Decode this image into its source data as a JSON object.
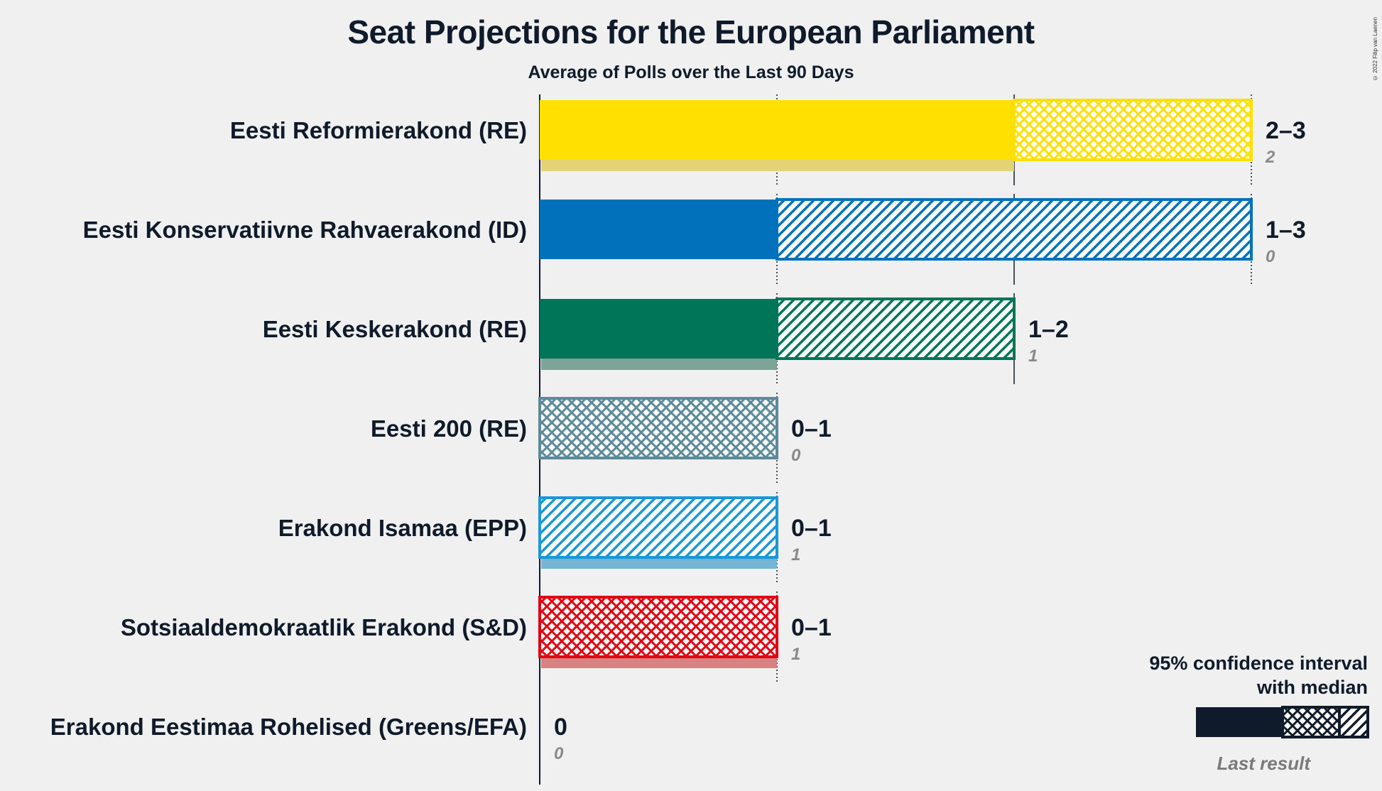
{
  "title": "Seat Projections for the European Parliament",
  "subtitle": "Average of Polls over the Last 90 Days",
  "copyright": "© 2022 Filip van Laenen",
  "legend": {
    "line1": "95% confidence interval",
    "line2": "with median",
    "last_result": "Last result",
    "color": "#0f1a2a"
  },
  "chart_data": {
    "type": "bar",
    "orientation": "horizontal",
    "x_axis": {
      "min": 0,
      "max": 3,
      "gridlines": [
        1,
        2,
        3
      ]
    },
    "parties": [
      {
        "name": "Eesti Reformierakond (RE)",
        "color": "#FFE000",
        "lastColor": "#e2d476",
        "ci80_low": 0,
        "ci80_high": 2,
        "ci95_high": 3,
        "ci95_pattern": "cross",
        "range": "2–3",
        "last": 2,
        "last_label": "2"
      },
      {
        "name": "Eesti Konservatiivne Rahvaerakond (ID)",
        "color": "#0071BA",
        "lastColor": "#8db5d3",
        "ci80_low": 0,
        "ci80_high": 1,
        "ci95_high": 3,
        "ci95_pattern": "diag",
        "range": "1–3",
        "last": 0,
        "last_label": "0"
      },
      {
        "name": "Eesti Keskerakond (RE)",
        "color": "#007557",
        "lastColor": "#7ea397",
        "ci80_low": 0,
        "ci80_high": 1,
        "ci95_high": 2,
        "ci95_pattern": "diag",
        "range": "1–2",
        "last": 1,
        "last_label": "1"
      },
      {
        "name": "Eesti 200 (RE)",
        "color": "#5b8a9b",
        "lastColor": "#a9c0c8",
        "ci80_low": 0,
        "ci80_high": 0,
        "ci95_high": 1,
        "ci95_pattern": "cross",
        "range": "0–1",
        "last": 0,
        "last_label": "0"
      },
      {
        "name": "Erakond Isamaa (EPP)",
        "color": "#1b97d8",
        "lastColor": "#74b5d6",
        "ci80_low": 0,
        "ci80_high": 0,
        "ci95_high": 1,
        "ci95_pattern": "diag",
        "range": "0–1",
        "last": 1,
        "last_label": "1"
      },
      {
        "name": "Sotsiaaldemokraatlik Erakond (S&D)",
        "color": "#E10514",
        "lastColor": "#d98283",
        "ci80_low": 0,
        "ci80_high": 0,
        "ci95_high": 1,
        "ci95_pattern": "cross",
        "range": "0–1",
        "last": 1,
        "last_label": "1"
      },
      {
        "name": "Erakond Eestimaa Rohelised (Greens/EFA)",
        "color": "#4b9f3e",
        "lastColor": "#9bc490",
        "ci80_low": 0,
        "ci80_high": 0,
        "ci95_high": 0,
        "ci95_pattern": "none",
        "range": "0",
        "last": 0,
        "last_label": "0"
      }
    ]
  }
}
